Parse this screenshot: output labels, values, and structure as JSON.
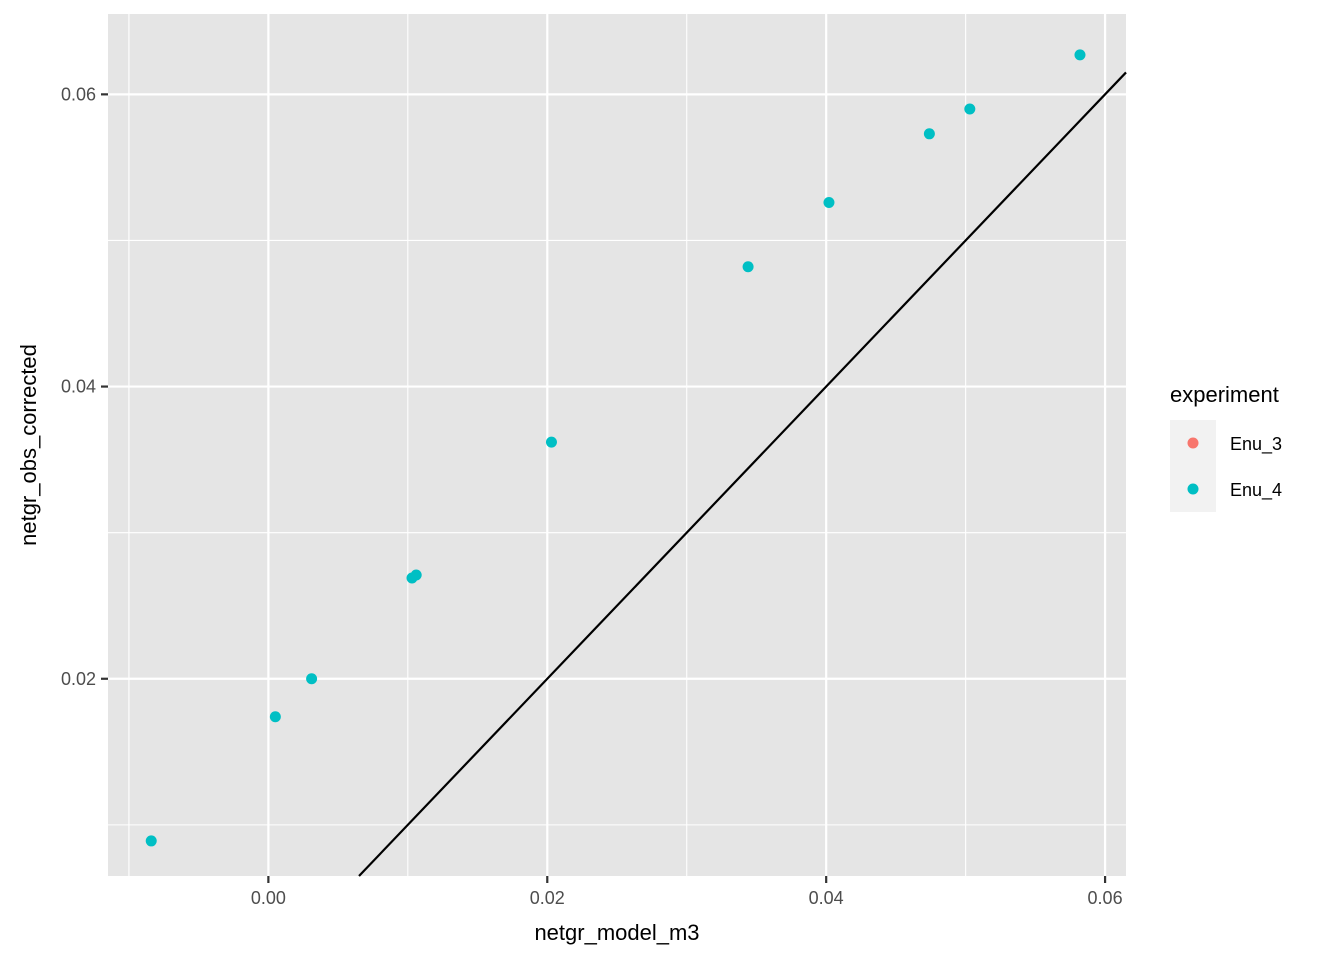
{
  "chart_data": {
    "type": "scatter",
    "title": "",
    "xlabel": "netgr_model_m3",
    "ylabel": "netgr_obs_corrected",
    "xlim": [
      -0.0115,
      0.0615
    ],
    "ylim": [
      0.0065,
      0.0655
    ],
    "x_ticks": [
      0.0,
      0.02,
      0.04,
      0.06
    ],
    "x_tick_labels": [
      "0.00",
      "0.02",
      "0.04",
      "0.06"
    ],
    "y_ticks": [
      0.02,
      0.04,
      0.06
    ],
    "y_tick_labels": [
      "0.02",
      "0.04",
      "0.06"
    ],
    "grid": true,
    "background": "#e5e5e5",
    "reference_line": {
      "slope": 1,
      "intercept": 0,
      "color": "#000000"
    },
    "legend": {
      "title": "experiment",
      "placement": "right",
      "entries": [
        {
          "label": "Enu_3",
          "color": "#F8766D"
        },
        {
          "label": "Enu_4",
          "color": "#00BFC4"
        }
      ]
    },
    "series": [
      {
        "name": "Enu_3",
        "color": "#F8766D",
        "points": []
      },
      {
        "name": "Enu_4",
        "color": "#00BFC4",
        "points": [
          {
            "x": -0.0084,
            "y": 0.0089
          },
          {
            "x": 0.0005,
            "y": 0.0174
          },
          {
            "x": 0.0031,
            "y": 0.02
          },
          {
            "x": 0.0103,
            "y": 0.0269
          },
          {
            "x": 0.0106,
            "y": 0.0271
          },
          {
            "x": 0.0203,
            "y": 0.0362
          },
          {
            "x": 0.0344,
            "y": 0.0482
          },
          {
            "x": 0.0402,
            "y": 0.0526
          },
          {
            "x": 0.0474,
            "y": 0.0573
          },
          {
            "x": 0.0503,
            "y": 0.059
          },
          {
            "x": 0.0582,
            "y": 0.0627
          }
        ]
      }
    ]
  }
}
